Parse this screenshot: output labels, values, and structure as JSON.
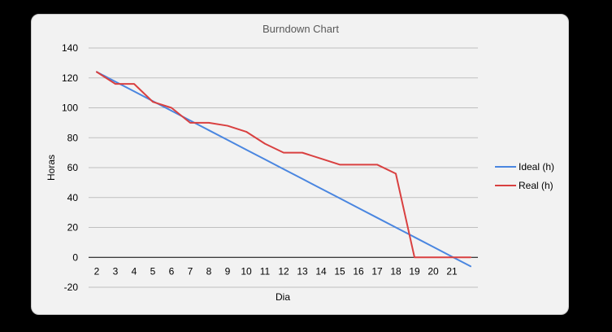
{
  "chart_data": {
    "type": "line",
    "title": "Burndown Chart",
    "xlabel": "Dia",
    "ylabel": "Horas",
    "ylim": [
      -20,
      140
    ],
    "yticks": [
      -20,
      0,
      20,
      40,
      60,
      80,
      100,
      120,
      140
    ],
    "categories": [
      "2",
      "3",
      "4",
      "5",
      "6",
      "7",
      "8",
      "9",
      "10",
      "11",
      "12",
      "13",
      "14",
      "15",
      "16",
      "17",
      "18",
      "19",
      "20",
      "21",
      ""
    ],
    "grid": true,
    "legend_position": "right",
    "series": [
      {
        "name": "Ideal (h)",
        "color": "#4a86e0",
        "values": [
          124,
          117.5,
          111,
          104.5,
          98,
          91.5,
          85,
          78.5,
          72,
          65.5,
          59,
          52.5,
          46,
          39.5,
          33,
          26.5,
          20,
          13.5,
          7,
          0.5,
          -6
        ]
      },
      {
        "name": "Real (h)",
        "color": "#d94040",
        "values": [
          124,
          116,
          116,
          104,
          100,
          90,
          90,
          88,
          84,
          76,
          70,
          70,
          66,
          62,
          62,
          62,
          56,
          0,
          0,
          0,
          0
        ]
      }
    ]
  }
}
